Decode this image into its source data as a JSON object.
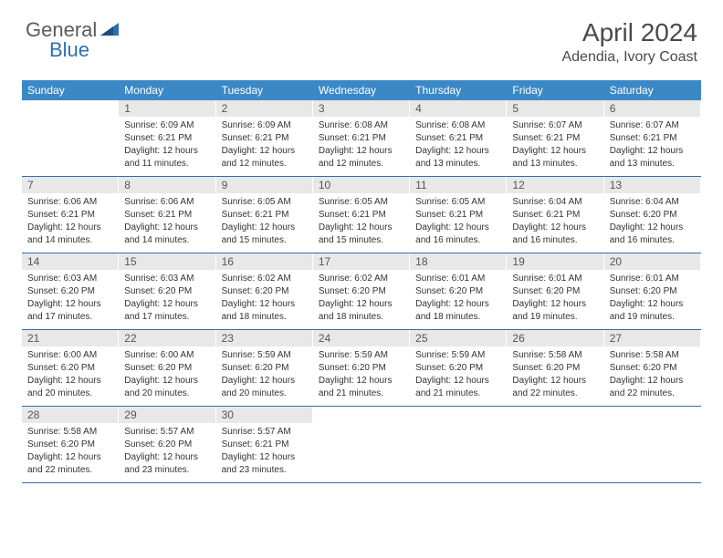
{
  "brand": {
    "part1": "General",
    "part2": "Blue"
  },
  "title": "April 2024",
  "location": "Adendia, Ivory Coast",
  "colors": {
    "header_bg": "#3b88c6",
    "header_text": "#ffffff",
    "daynum_bg": "#e8e8e8",
    "row_border": "#2f6fb0",
    "logo_gray": "#5a5a5a",
    "logo_blue": "#2f6fb0"
  },
  "dow": [
    "Sunday",
    "Monday",
    "Tuesday",
    "Wednesday",
    "Thursday",
    "Friday",
    "Saturday"
  ],
  "weeks": [
    [
      {
        "day": "",
        "sunrise": "",
        "sunset": "",
        "daylight1": "",
        "daylight2": ""
      },
      {
        "day": "1",
        "sunrise": "Sunrise: 6:09 AM",
        "sunset": "Sunset: 6:21 PM",
        "daylight1": "Daylight: 12 hours",
        "daylight2": "and 11 minutes."
      },
      {
        "day": "2",
        "sunrise": "Sunrise: 6:09 AM",
        "sunset": "Sunset: 6:21 PM",
        "daylight1": "Daylight: 12 hours",
        "daylight2": "and 12 minutes."
      },
      {
        "day": "3",
        "sunrise": "Sunrise: 6:08 AM",
        "sunset": "Sunset: 6:21 PM",
        "daylight1": "Daylight: 12 hours",
        "daylight2": "and 12 minutes."
      },
      {
        "day": "4",
        "sunrise": "Sunrise: 6:08 AM",
        "sunset": "Sunset: 6:21 PM",
        "daylight1": "Daylight: 12 hours",
        "daylight2": "and 13 minutes."
      },
      {
        "day": "5",
        "sunrise": "Sunrise: 6:07 AM",
        "sunset": "Sunset: 6:21 PM",
        "daylight1": "Daylight: 12 hours",
        "daylight2": "and 13 minutes."
      },
      {
        "day": "6",
        "sunrise": "Sunrise: 6:07 AM",
        "sunset": "Sunset: 6:21 PM",
        "daylight1": "Daylight: 12 hours",
        "daylight2": "and 13 minutes."
      }
    ],
    [
      {
        "day": "7",
        "sunrise": "Sunrise: 6:06 AM",
        "sunset": "Sunset: 6:21 PM",
        "daylight1": "Daylight: 12 hours",
        "daylight2": "and 14 minutes."
      },
      {
        "day": "8",
        "sunrise": "Sunrise: 6:06 AM",
        "sunset": "Sunset: 6:21 PM",
        "daylight1": "Daylight: 12 hours",
        "daylight2": "and 14 minutes."
      },
      {
        "day": "9",
        "sunrise": "Sunrise: 6:05 AM",
        "sunset": "Sunset: 6:21 PM",
        "daylight1": "Daylight: 12 hours",
        "daylight2": "and 15 minutes."
      },
      {
        "day": "10",
        "sunrise": "Sunrise: 6:05 AM",
        "sunset": "Sunset: 6:21 PM",
        "daylight1": "Daylight: 12 hours",
        "daylight2": "and 15 minutes."
      },
      {
        "day": "11",
        "sunrise": "Sunrise: 6:05 AM",
        "sunset": "Sunset: 6:21 PM",
        "daylight1": "Daylight: 12 hours",
        "daylight2": "and 16 minutes."
      },
      {
        "day": "12",
        "sunrise": "Sunrise: 6:04 AM",
        "sunset": "Sunset: 6:21 PM",
        "daylight1": "Daylight: 12 hours",
        "daylight2": "and 16 minutes."
      },
      {
        "day": "13",
        "sunrise": "Sunrise: 6:04 AM",
        "sunset": "Sunset: 6:20 PM",
        "daylight1": "Daylight: 12 hours",
        "daylight2": "and 16 minutes."
      }
    ],
    [
      {
        "day": "14",
        "sunrise": "Sunrise: 6:03 AM",
        "sunset": "Sunset: 6:20 PM",
        "daylight1": "Daylight: 12 hours",
        "daylight2": "and 17 minutes."
      },
      {
        "day": "15",
        "sunrise": "Sunrise: 6:03 AM",
        "sunset": "Sunset: 6:20 PM",
        "daylight1": "Daylight: 12 hours",
        "daylight2": "and 17 minutes."
      },
      {
        "day": "16",
        "sunrise": "Sunrise: 6:02 AM",
        "sunset": "Sunset: 6:20 PM",
        "daylight1": "Daylight: 12 hours",
        "daylight2": "and 18 minutes."
      },
      {
        "day": "17",
        "sunrise": "Sunrise: 6:02 AM",
        "sunset": "Sunset: 6:20 PM",
        "daylight1": "Daylight: 12 hours",
        "daylight2": "and 18 minutes."
      },
      {
        "day": "18",
        "sunrise": "Sunrise: 6:01 AM",
        "sunset": "Sunset: 6:20 PM",
        "daylight1": "Daylight: 12 hours",
        "daylight2": "and 18 minutes."
      },
      {
        "day": "19",
        "sunrise": "Sunrise: 6:01 AM",
        "sunset": "Sunset: 6:20 PM",
        "daylight1": "Daylight: 12 hours",
        "daylight2": "and 19 minutes."
      },
      {
        "day": "20",
        "sunrise": "Sunrise: 6:01 AM",
        "sunset": "Sunset: 6:20 PM",
        "daylight1": "Daylight: 12 hours",
        "daylight2": "and 19 minutes."
      }
    ],
    [
      {
        "day": "21",
        "sunrise": "Sunrise: 6:00 AM",
        "sunset": "Sunset: 6:20 PM",
        "daylight1": "Daylight: 12 hours",
        "daylight2": "and 20 minutes."
      },
      {
        "day": "22",
        "sunrise": "Sunrise: 6:00 AM",
        "sunset": "Sunset: 6:20 PM",
        "daylight1": "Daylight: 12 hours",
        "daylight2": "and 20 minutes."
      },
      {
        "day": "23",
        "sunrise": "Sunrise: 5:59 AM",
        "sunset": "Sunset: 6:20 PM",
        "daylight1": "Daylight: 12 hours",
        "daylight2": "and 20 minutes."
      },
      {
        "day": "24",
        "sunrise": "Sunrise: 5:59 AM",
        "sunset": "Sunset: 6:20 PM",
        "daylight1": "Daylight: 12 hours",
        "daylight2": "and 21 minutes."
      },
      {
        "day": "25",
        "sunrise": "Sunrise: 5:59 AM",
        "sunset": "Sunset: 6:20 PM",
        "daylight1": "Daylight: 12 hours",
        "daylight2": "and 21 minutes."
      },
      {
        "day": "26",
        "sunrise": "Sunrise: 5:58 AM",
        "sunset": "Sunset: 6:20 PM",
        "daylight1": "Daylight: 12 hours",
        "daylight2": "and 22 minutes."
      },
      {
        "day": "27",
        "sunrise": "Sunrise: 5:58 AM",
        "sunset": "Sunset: 6:20 PM",
        "daylight1": "Daylight: 12 hours",
        "daylight2": "and 22 minutes."
      }
    ],
    [
      {
        "day": "28",
        "sunrise": "Sunrise: 5:58 AM",
        "sunset": "Sunset: 6:20 PM",
        "daylight1": "Daylight: 12 hours",
        "daylight2": "and 22 minutes."
      },
      {
        "day": "29",
        "sunrise": "Sunrise: 5:57 AM",
        "sunset": "Sunset: 6:20 PM",
        "daylight1": "Daylight: 12 hours",
        "daylight2": "and 23 minutes."
      },
      {
        "day": "30",
        "sunrise": "Sunrise: 5:57 AM",
        "sunset": "Sunset: 6:21 PM",
        "daylight1": "Daylight: 12 hours",
        "daylight2": "and 23 minutes."
      },
      {
        "day": "",
        "sunrise": "",
        "sunset": "",
        "daylight1": "",
        "daylight2": ""
      },
      {
        "day": "",
        "sunrise": "",
        "sunset": "",
        "daylight1": "",
        "daylight2": ""
      },
      {
        "day": "",
        "sunrise": "",
        "sunset": "",
        "daylight1": "",
        "daylight2": ""
      },
      {
        "day": "",
        "sunrise": "",
        "sunset": "",
        "daylight1": "",
        "daylight2": ""
      }
    ]
  ]
}
